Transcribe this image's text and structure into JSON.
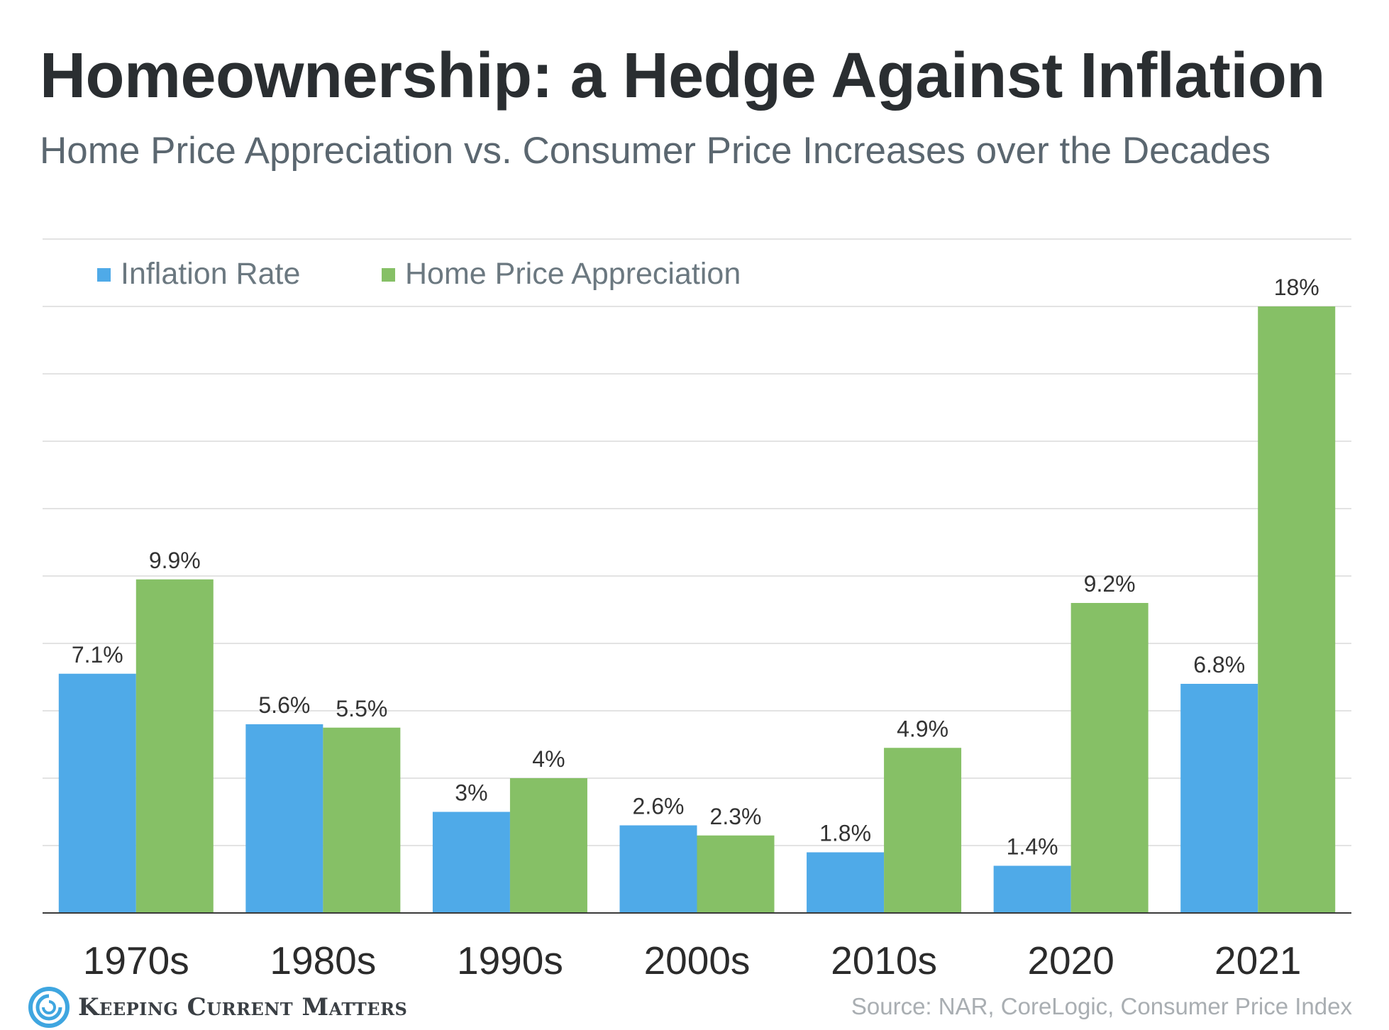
{
  "title": "Homeownership: a Hedge Against Inflation",
  "subtitle": "Home Price Appreciation vs. Consumer Price Increases over the Decades",
  "legend": [
    {
      "name": "Inflation Rate",
      "color": "#4faae8"
    },
    {
      "name": "Home Price Appreciation",
      "color": "#86c066"
    }
  ],
  "chart_data": {
    "type": "bar",
    "categories": [
      "1970s",
      "1980s",
      "1990s",
      "2000s",
      "2010s",
      "2020",
      "2021"
    ],
    "series": [
      {
        "name": "Inflation Rate",
        "values": [
          7.1,
          5.6,
          3,
          2.6,
          1.8,
          1.4,
          6.8
        ],
        "labels": [
          "7.1%",
          "5.6%",
          "3%",
          "2.6%",
          "1.8%",
          "1.4%",
          "6.8%"
        ],
        "color": "#4faae8"
      },
      {
        "name": "Home Price Appreciation",
        "values": [
          9.9,
          5.5,
          4,
          2.3,
          4.9,
          9.2,
          18
        ],
        "labels": [
          "9.9%",
          "5.5%",
          "4%",
          "2.3%",
          "4.9%",
          "9.2%",
          "18%"
        ],
        "color": "#86c066"
      }
    ],
    "ylim": [
      0,
      20
    ],
    "grid": true,
    "legend_position": "top-left"
  },
  "branding": {
    "logo_text": "Keeping Current Matters",
    "logo_color": "#3fa6e0"
  },
  "source": "Source: NAR, CoreLogic, Consumer Price Index"
}
